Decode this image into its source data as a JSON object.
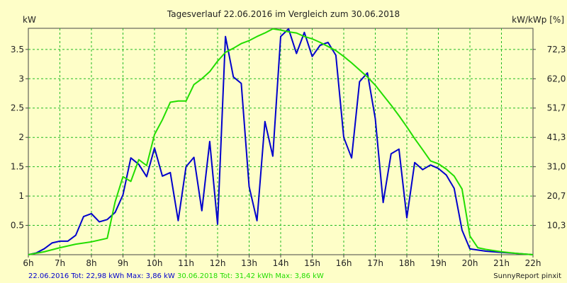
{
  "chart_data": {
    "type": "line",
    "title": "Tagesverlauf 22.06.2016 im Vergleich zum 30.06.2018",
    "ylabel_left": "kW",
    "ylabel_right": "kW/kWp [%]",
    "xlim": [
      6,
      22
    ],
    "ylim": [
      0,
      3.86
    ],
    "x_ticks": [
      {
        "value": 6,
        "label": "6h"
      },
      {
        "value": 7,
        "label": "7h"
      },
      {
        "value": 8,
        "label": "8h"
      },
      {
        "value": 9,
        "label": "9h"
      },
      {
        "value": 10,
        "label": "10h"
      },
      {
        "value": 11,
        "label": "11h"
      },
      {
        "value": 12,
        "label": "12h"
      },
      {
        "value": 13,
        "label": "13h"
      },
      {
        "value": 14,
        "label": "14h"
      },
      {
        "value": 15,
        "label": "15h"
      },
      {
        "value": 16,
        "label": "16h"
      },
      {
        "value": 17,
        "label": "17h"
      },
      {
        "value": 18,
        "label": "18h"
      },
      {
        "value": 19,
        "label": "19h"
      },
      {
        "value": 20,
        "label": "20h"
      },
      {
        "value": 21,
        "label": "21h"
      },
      {
        "value": 22,
        "label": "22h"
      }
    ],
    "y_ticks_left": [
      {
        "value": 0.5,
        "label": "0.5"
      },
      {
        "value": 1.0,
        "label": "1"
      },
      {
        "value": 1.5,
        "label": "1.5"
      },
      {
        "value": 2.0,
        "label": "2"
      },
      {
        "value": 2.5,
        "label": "2.5"
      },
      {
        "value": 3.0,
        "label": "3"
      },
      {
        "value": 3.5,
        "label": "3.5"
      }
    ],
    "y_ticks_right": [
      {
        "value": 0.5,
        "label": "10,3"
      },
      {
        "value": 1.0,
        "label": "20,7"
      },
      {
        "value": 1.5,
        "label": "31,0"
      },
      {
        "value": 2.0,
        "label": "41,3"
      },
      {
        "value": 2.5,
        "label": "51,7"
      },
      {
        "value": 3.0,
        "label": "62,0"
      },
      {
        "value": 3.5,
        "label": "72,3"
      }
    ],
    "grid": true,
    "series": [
      {
        "color": "#0000cc",
        "x": [
          6.0,
          6.25,
          6.5,
          6.75,
          7.0,
          7.25,
          7.5,
          7.75,
          8.0,
          8.25,
          8.5,
          8.75,
          9.0,
          9.25,
          9.5,
          9.75,
          10.0,
          10.25,
          10.5,
          10.75,
          11.0,
          11.25,
          11.5,
          11.75,
          12.0,
          12.25,
          12.5,
          12.75,
          13.0,
          13.25,
          13.5,
          13.75,
          14.0,
          14.25,
          14.5,
          14.75,
          15.0,
          15.25,
          15.5,
          15.75,
          16.0,
          16.25,
          16.5,
          16.75,
          17.0,
          17.25,
          17.5,
          17.75,
          18.0,
          18.25,
          18.5,
          18.75,
          19.0,
          19.25,
          19.5,
          19.75,
          20.0,
          20.5,
          21.0,
          21.5,
          22.0
        ],
        "values": [
          0.0,
          0.03,
          0.1,
          0.2,
          0.23,
          0.23,
          0.33,
          0.65,
          0.7,
          0.56,
          0.6,
          0.72,
          1.02,
          1.65,
          1.54,
          1.33,
          1.82,
          1.34,
          1.4,
          0.58,
          1.5,
          1.66,
          0.75,
          1.93,
          0.52,
          3.72,
          3.03,
          2.92,
          1.16,
          0.58,
          2.27,
          1.68,
          3.72,
          3.85,
          3.43,
          3.79,
          3.38,
          3.57,
          3.62,
          3.4,
          2.0,
          1.65,
          2.95,
          3.1,
          2.32,
          0.89,
          1.72,
          1.8,
          0.63,
          1.57,
          1.45,
          1.53,
          1.47,
          1.36,
          1.13,
          0.42,
          0.1,
          0.06,
          0.04,
          0.02,
          0.0
        ]
      },
      {
        "color": "#22dd00",
        "x": [
          6.0,
          6.5,
          7.0,
          7.5,
          8.0,
          8.5,
          8.75,
          9.0,
          9.25,
          9.5,
          9.75,
          10.0,
          10.25,
          10.5,
          10.75,
          11.0,
          11.25,
          11.5,
          11.75,
          12.0,
          12.25,
          12.5,
          12.75,
          13.0,
          13.25,
          13.5,
          13.75,
          14.0,
          14.25,
          14.5,
          14.75,
          15.0,
          15.25,
          15.5,
          15.75,
          16.0,
          16.25,
          16.5,
          16.75,
          17.0,
          17.25,
          17.5,
          17.75,
          18.0,
          18.25,
          18.5,
          18.75,
          19.0,
          19.25,
          19.5,
          19.75,
          20.0,
          20.25,
          20.5,
          21.0,
          21.5,
          22.0
        ],
        "values": [
          0.0,
          0.05,
          0.12,
          0.18,
          0.22,
          0.28,
          0.9,
          1.33,
          1.25,
          1.62,
          1.52,
          2.05,
          2.3,
          2.6,
          2.62,
          2.62,
          2.9,
          3.0,
          3.12,
          3.3,
          3.45,
          3.52,
          3.6,
          3.65,
          3.72,
          3.78,
          3.85,
          3.83,
          3.8,
          3.78,
          3.72,
          3.68,
          3.62,
          3.55,
          3.48,
          3.38,
          3.27,
          3.15,
          3.03,
          2.89,
          2.72,
          2.55,
          2.37,
          2.18,
          1.98,
          1.79,
          1.6,
          1.55,
          1.46,
          1.34,
          1.12,
          0.32,
          0.12,
          0.09,
          0.05,
          0.02,
          0.0
        ]
      }
    ]
  },
  "footer": {
    "legend_2016": "22.06.2016 Tot: 22,98 kWh Max: 3,86 kW",
    "legend_2018": "30.06.2018 Tot: 31,42 kWh Max: 3,86 kW",
    "brand": "SunnyReport pinxit"
  }
}
